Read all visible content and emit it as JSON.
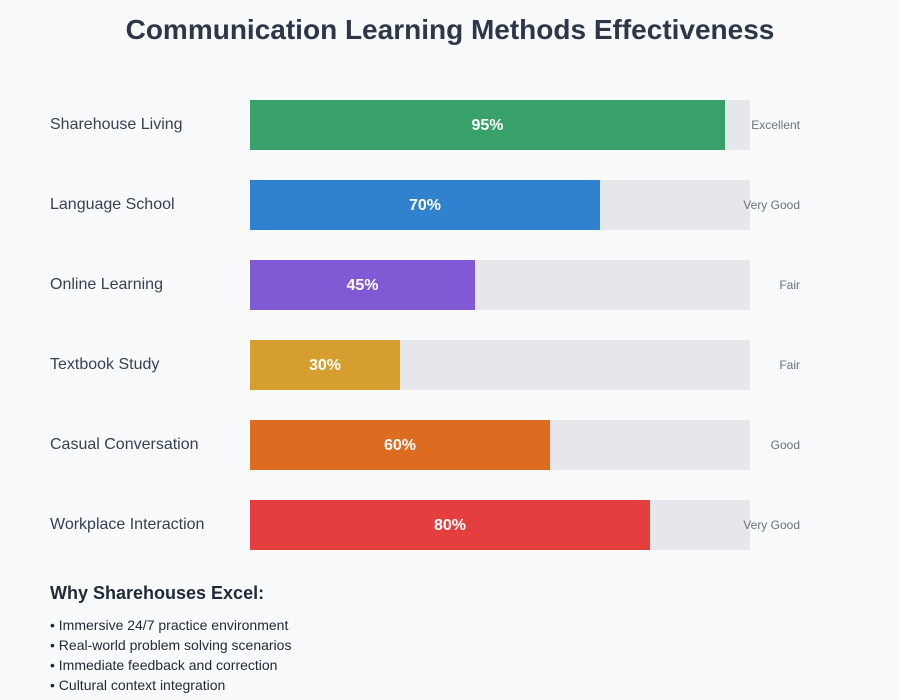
{
  "chart_data": {
    "type": "bar",
    "orientation": "horizontal",
    "title": "Communication Learning Methods Effectiveness",
    "categories": [
      "Sharehouse Living",
      "Language School",
      "Online Learning",
      "Textbook Study",
      "Casual Conversation",
      "Workplace Interaction"
    ],
    "values": [
      95,
      70,
      45,
      30,
      60,
      80
    ],
    "value_labels": [
      "95%",
      "70%",
      "45%",
      "30%",
      "60%",
      "80%"
    ],
    "ratings": [
      "Excellent",
      "Very Good",
      "Fair",
      "Fair",
      "Good",
      "Very Good"
    ],
    "colors": [
      "#38a169",
      "#3182ce",
      "#805ad5",
      "#d69e2e",
      "#dd6b20",
      "#e53e3e"
    ],
    "xlim": [
      0,
      100
    ],
    "track_color": "#e5e7eb"
  },
  "notes": {
    "heading": "Why Sharehouses Excel:",
    "items": [
      "• Immersive 24/7 practice environment",
      "• Real-world problem solving scenarios",
      "• Immediate feedback and correction",
      "• Cultural context integration"
    ]
  }
}
